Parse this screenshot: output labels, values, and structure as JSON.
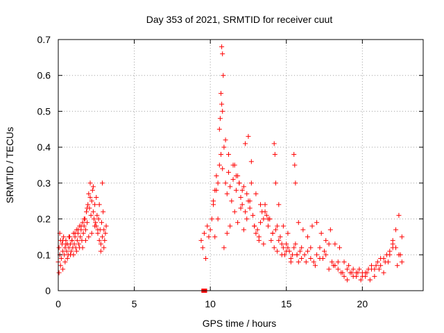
{
  "colors": {
    "series": "#ff0000",
    "grid": "#a0a0a0",
    "axis": "#000000"
  },
  "chart_data": {
    "type": "scatter",
    "title": "Day 353 of 2021, SRMTID for receiver cuut",
    "xlabel": "GPS time / hours",
    "ylabel": "SRMTID / TECUs",
    "xlim": [
      0,
      24
    ],
    "ylim": [
      0,
      0.7
    ],
    "xticks": [
      0,
      5,
      10,
      15,
      20
    ],
    "yticks": [
      0,
      0.1,
      0.2,
      0.3,
      0.4,
      0.5,
      0.6,
      0.7
    ],
    "xtick_labels": [
      "0",
      "5",
      "10",
      "15",
      "20"
    ],
    "ytick_labels": [
      "0",
      "0.1",
      "0.2",
      "0.3",
      "0.4",
      "0.5",
      "0.6",
      "0.7"
    ],
    "grid": true,
    "series": [
      {
        "name": "SRMTID",
        "marker": "plus",
        "x": [
          0.0,
          0.05,
          0.1,
          0.15,
          0.2,
          0.25,
          0.3,
          0.35,
          0.4,
          0.45,
          0.5,
          0.55,
          0.6,
          0.65,
          0.7,
          0.75,
          0.8,
          0.85,
          0.9,
          0.95,
          1.0,
          1.05,
          1.1,
          1.15,
          1.2,
          1.25,
          1.3,
          1.35,
          1.4,
          1.45,
          1.5,
          1.55,
          1.6,
          1.65,
          1.7,
          1.75,
          1.8,
          1.85,
          1.9,
          1.95,
          2.0,
          2.05,
          2.1,
          2.15,
          2.2,
          2.25,
          2.3,
          2.35,
          2.4,
          2.45,
          2.5,
          2.55,
          2.6,
          2.65,
          2.7,
          2.75,
          2.8,
          2.85,
          2.9,
          2.95,
          3.0,
          3.05,
          3.1,
          3.15,
          0.05,
          0.15,
          0.3,
          0.45,
          0.6,
          0.8,
          1.0,
          1.2,
          1.4,
          1.6,
          1.8,
          2.0,
          2.2,
          2.4,
          2.6,
          2.8,
          3.0,
          0.1,
          0.3,
          0.5,
          0.7,
          0.9,
          1.1,
          1.3,
          1.5,
          1.7,
          1.9,
          2.1,
          2.3,
          2.5,
          2.7,
          2.9,
          9.4,
          9.6,
          9.8,
          9.5,
          9.7,
          9.9,
          10.0,
          10.1,
          10.2,
          10.3,
          10.4,
          10.5,
          10.6,
          10.7,
          10.8,
          10.9,
          11.0,
          11.1,
          11.2,
          11.3,
          11.4,
          11.5,
          11.6,
          11.7,
          11.8,
          11.9,
          12.0,
          12.1,
          12.2,
          12.3,
          12.4,
          12.5,
          12.6,
          12.7,
          12.8,
          12.9,
          13.0,
          13.1,
          13.2,
          13.3,
          13.4,
          13.5,
          13.6,
          13.7,
          13.8,
          13.9,
          14.0,
          14.1,
          14.2,
          14.3,
          14.4,
          14.5,
          14.6,
          14.7,
          14.8,
          14.9,
          15.0,
          15.1,
          15.2,
          15.3,
          15.4,
          15.5,
          15.6,
          15.7,
          15.8,
          15.9,
          16.0,
          16.2,
          16.4,
          16.6,
          16.8,
          17.0,
          17.2,
          17.4,
          17.6,
          17.8,
          18.0,
          18.2,
          18.4,
          18.6,
          18.8,
          19.0,
          19.2,
          19.4,
          19.6,
          19.8,
          20.0,
          20.2,
          20.4,
          20.6,
          20.8,
          21.0,
          21.2,
          21.4,
          21.6,
          21.8,
          22.0,
          22.2,
          22.4,
          22.6,
          10.2,
          10.4,
          10.6,
          10.75,
          10.8,
          10.85,
          10.7,
          10.75,
          10.8,
          10.65,
          11.0,
          11.2,
          11.5,
          11.7,
          11.9,
          12.1,
          12.3,
          12.5,
          12.7,
          13.0,
          13.3,
          13.6,
          13.9,
          14.2,
          14.25,
          14.3,
          14.5,
          14.8,
          15.1,
          15.5,
          15.55,
          15.6,
          15.8,
          16.1,
          16.4,
          16.7,
          17.0,
          17.3,
          17.6,
          17.9,
          18.2,
          18.5,
          18.8,
          19.1,
          19.4,
          19.7,
          20.0,
          20.3,
          20.6,
          20.9,
          21.2,
          21.5,
          21.8,
          22.0,
          22.2,
          22.4,
          22.6,
          10.3,
          10.5,
          10.9,
          11.1,
          11.3,
          11.6,
          11.8,
          12.0,
          12.2,
          12.4,
          12.6,
          12.9,
          13.2,
          13.5,
          13.8,
          14.1,
          14.4,
          14.7,
          15.0,
          15.3,
          15.7,
          16.0,
          16.3,
          16.6,
          16.9,
          17.2,
          17.5,
          17.8,
          18.1,
          18.4,
          18.7,
          19.0,
          19.3,
          19.6,
          19.9,
          20.2,
          20.5,
          20.8,
          21.1,
          21.4,
          21.7,
          22.0,
          22.3,
          22.5,
          9.55,
          9.65
        ],
        "y": [
          0.08,
          0.12,
          0.1,
          0.14,
          0.09,
          0.13,
          0.11,
          0.15,
          0.1,
          0.12,
          0.14,
          0.11,
          0.13,
          0.1,
          0.12,
          0.15,
          0.13,
          0.11,
          0.14,
          0.12,
          0.16,
          0.13,
          0.15,
          0.12,
          0.17,
          0.14,
          0.16,
          0.13,
          0.18,
          0.15,
          0.17,
          0.14,
          0.19,
          0.16,
          0.18,
          0.2,
          0.17,
          0.22,
          0.19,
          0.24,
          0.27,
          0.23,
          0.26,
          0.21,
          0.25,
          0.28,
          0.22,
          0.2,
          0.24,
          0.19,
          0.18,
          0.21,
          0.16,
          0.2,
          0.14,
          0.17,
          0.13,
          0.19,
          0.15,
          0.22,
          0.17,
          0.14,
          0.16,
          0.18,
          0.05,
          0.07,
          0.06,
          0.08,
          0.09,
          0.1,
          0.1,
          0.11,
          0.12,
          0.12,
          0.14,
          0.15,
          0.16,
          0.18,
          0.17,
          0.11,
          0.12,
          0.16,
          0.14,
          0.13,
          0.15,
          0.14,
          0.16,
          0.17,
          0.18,
          0.2,
          0.23,
          0.3,
          0.29,
          0.26,
          0.24,
          0.3,
          0.14,
          0.16,
          0.18,
          0.12,
          0.09,
          0.15,
          0.17,
          0.2,
          0.24,
          0.28,
          0.32,
          0.3,
          0.35,
          0.38,
          0.34,
          0.4,
          0.3,
          0.27,
          0.33,
          0.29,
          0.25,
          0.31,
          0.35,
          0.28,
          0.32,
          0.3,
          0.26,
          0.24,
          0.29,
          0.22,
          0.27,
          0.25,
          0.23,
          0.3,
          0.21,
          0.18,
          0.16,
          0.17,
          0.15,
          0.19,
          0.22,
          0.2,
          0.24,
          0.21,
          0.18,
          0.2,
          0.14,
          0.16,
          0.12,
          0.17,
          0.11,
          0.14,
          0.15,
          0.13,
          0.12,
          0.1,
          0.13,
          0.12,
          0.11,
          0.09,
          0.1,
          0.12,
          0.13,
          0.1,
          0.08,
          0.11,
          0.12,
          0.1,
          0.11,
          0.09,
          0.08,
          0.1,
          0.12,
          0.09,
          0.1,
          0.13,
          0.08,
          0.07,
          0.06,
          0.05,
          0.04,
          0.06,
          0.05,
          0.04,
          0.05,
          0.06,
          0.05,
          0.04,
          0.06,
          0.07,
          0.06,
          0.08,
          0.07,
          0.09,
          0.1,
          0.11,
          0.14,
          0.12,
          0.1,
          0.08,
          0.25,
          0.28,
          0.45,
          0.68,
          0.66,
          0.6,
          0.55,
          0.52,
          0.5,
          0.48,
          0.42,
          0.38,
          0.35,
          0.32,
          0.3,
          0.28,
          0.41,
          0.43,
          0.36,
          0.27,
          0.24,
          0.22,
          0.2,
          0.41,
          0.38,
          0.3,
          0.24,
          0.18,
          0.16,
          0.38,
          0.35,
          0.3,
          0.19,
          0.17,
          0.15,
          0.18,
          0.19,
          0.16,
          0.14,
          0.17,
          0.13,
          0.12,
          0.08,
          0.07,
          0.06,
          0.05,
          0.04,
          0.05,
          0.06,
          0.07,
          0.09,
          0.08,
          0.1,
          0.13,
          0.17,
          0.21,
          0.15,
          0.15,
          0.2,
          0.12,
          0.16,
          0.18,
          0.22,
          0.19,
          0.23,
          0.17,
          0.2,
          0.25,
          0.18,
          0.14,
          0.13,
          0.2,
          0.16,
          0.18,
          0.1,
          0.11,
          0.08,
          0.1,
          0.09,
          0.08,
          0.12,
          0.07,
          0.09,
          0.11,
          0.06,
          0.07,
          0.08,
          0.05,
          0.03,
          0.05,
          0.04,
          0.03,
          0.05,
          0.03,
          0.04,
          0.06,
          0.05,
          0.08,
          0.12,
          0.07,
          0.1,
          0.0,
          0.0
        ]
      }
    ]
  }
}
